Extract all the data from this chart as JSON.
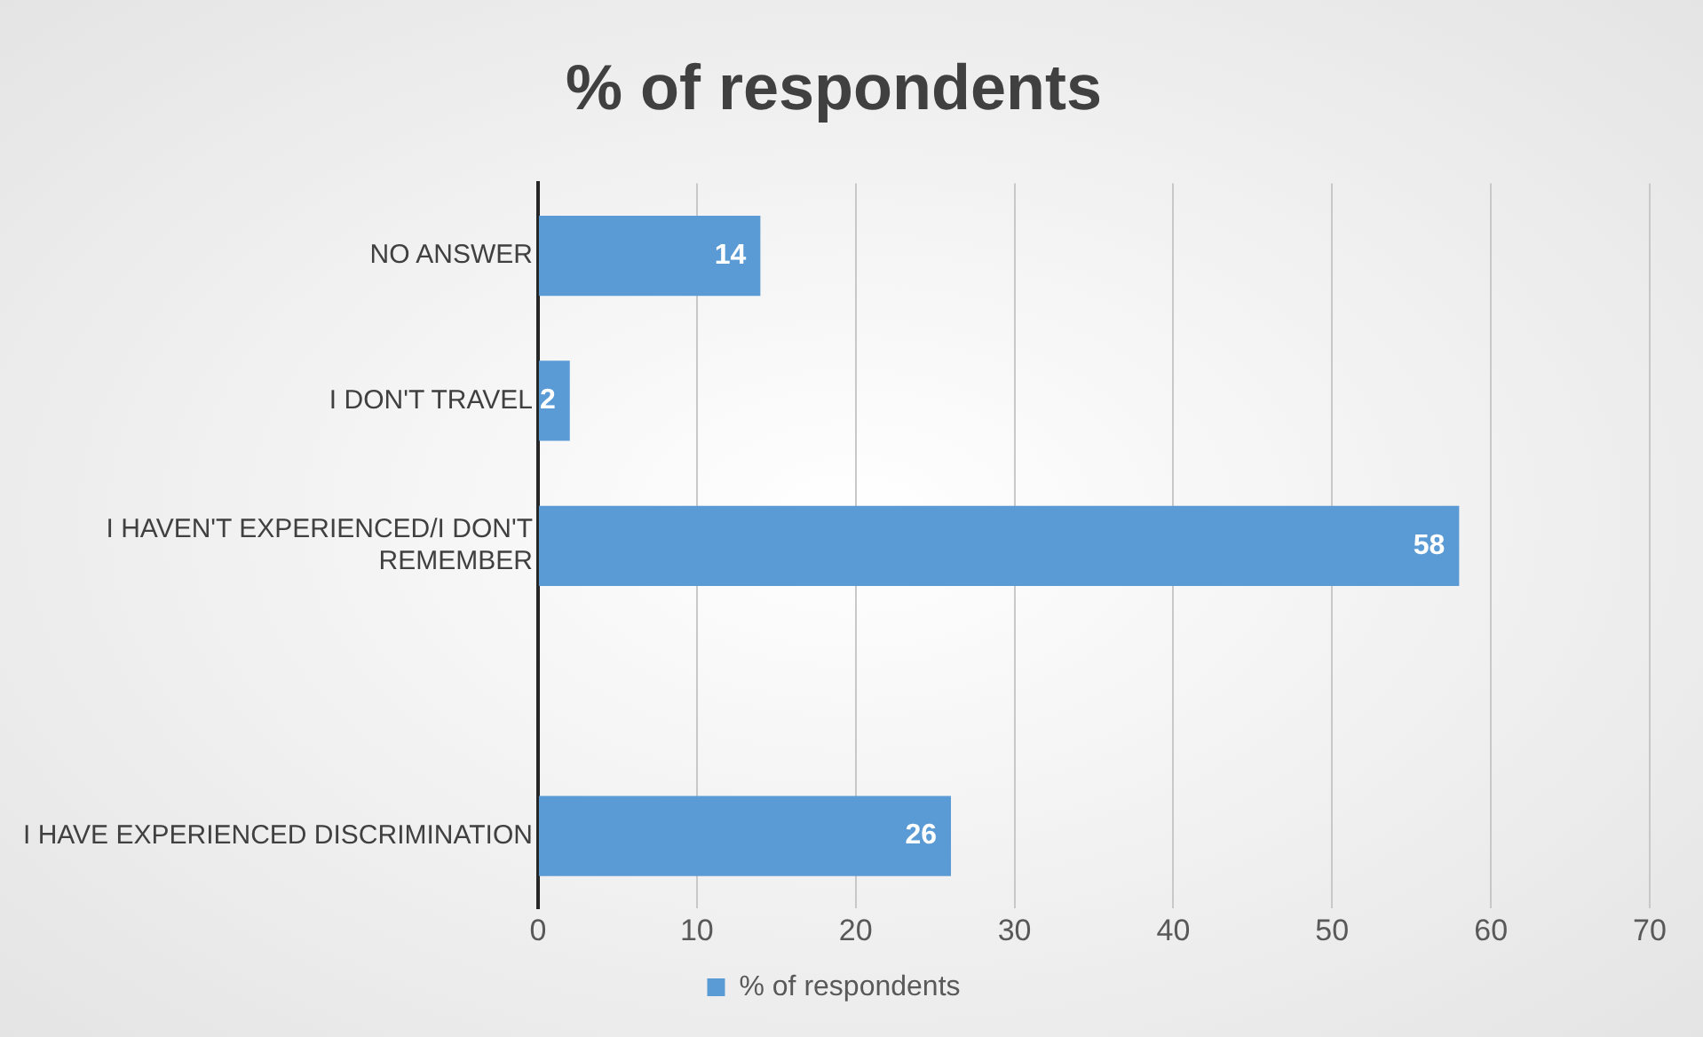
{
  "chart_data": {
    "type": "bar",
    "orientation": "horizontal",
    "title": "% of respondents",
    "categories": [
      "NO ANSWER",
      "I DON'T TRAVEL",
      "I HAVEN'T EXPERIENCED/I DON'T REMEMBER",
      null,
      "I HAVE EXPERIENCED DISCRIMINATION"
    ],
    "series": [
      {
        "name": "% of respondents",
        "color": "#5b9bd5",
        "values": [
          14,
          2,
          58,
          null,
          26
        ]
      }
    ],
    "xlim": [
      0,
      70
    ],
    "xticks": [
      0,
      10,
      20,
      30,
      40,
      50,
      60,
      70
    ],
    "grid": "x",
    "legend": "bottom",
    "data_labels": true
  }
}
